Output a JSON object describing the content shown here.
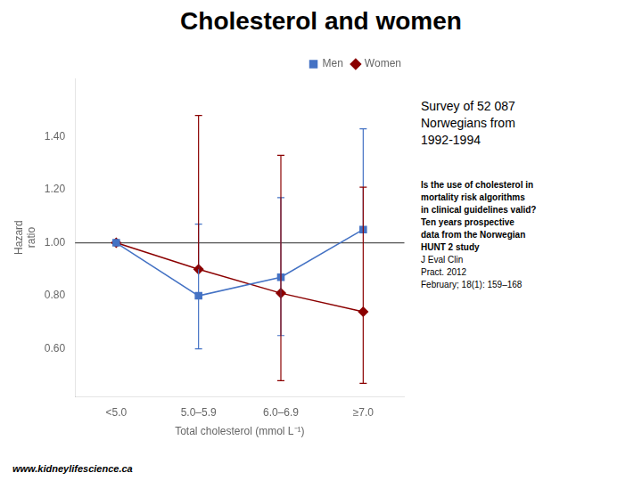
{
  "chart_data": {
    "type": "line",
    "title": "Cholesterol and women",
    "xlabel": "Total cholesterol (mmol L⁻¹)",
    "ylabel": "Hazard\nratio",
    "categories": [
      "<5.0",
      "5.0–5.9",
      "6.0–6.9",
      "≥7.0"
    ],
    "series": [
      {
        "name": "Men",
        "color": "#4472C4",
        "marker": "square",
        "values": [
          1.0,
          0.8,
          0.87,
          1.05
        ],
        "yerr_low": [
          0.0,
          0.2,
          0.22,
          0.0
        ],
        "yerr_high": [
          0.0,
          0.27,
          0.3,
          0.38
        ]
      },
      {
        "name": "Women",
        "color": "#8B0000",
        "marker": "diamond",
        "values": [
          1.0,
          0.9,
          0.81,
          0.74
        ],
        "yerr_low": [
          0.0,
          0.0,
          0.33,
          0.27
        ],
        "yerr_high": [
          0.0,
          0.58,
          0.52,
          0.47
        ]
      }
    ],
    "reference_line": {
      "y": 1.0,
      "color": "#555555"
    },
    "ylim": [
      0.42,
      1.62
    ],
    "yticks": [
      {
        "value": 0.6,
        "label": "0.60"
      },
      {
        "value": 0.8,
        "label": "0.80"
      },
      {
        "value": 1.0,
        "label": "1.00"
      },
      {
        "value": 1.2,
        "label": "1.20"
      },
      {
        "value": 1.4,
        "label": "1.40"
      }
    ],
    "grid": false,
    "legend": "upper right",
    "annotations": [
      "Survey of 52 087\nNorwegians from\n1992-1994",
      "Is the use of cholesterol in\nmortality risk algorithms\nin clinical guidelines valid?\nTen years prospective\ndata from the Norwegian\nHUNT 2 study ",
      "J Eval Clin\nPract. 2012\nFebruary; 18(1): 159–168",
      "www.kidneylifescience.ca"
    ]
  }
}
